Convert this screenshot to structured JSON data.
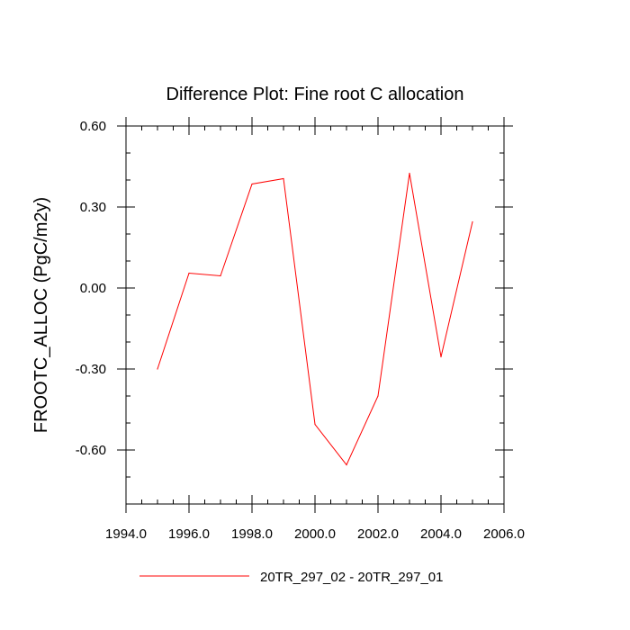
{
  "chart_data": {
    "type": "line",
    "title": "Difference Plot: Fine root C allocation",
    "xlabel": "",
    "ylabel": "FROOTC_ALLOC  (PgC/m2y)",
    "xlim": [
      1994.0,
      2006.0
    ],
    "ylim": [
      -0.8,
      0.6
    ],
    "x_ticks": [
      1994.0,
      1996.0,
      1998.0,
      2000.0,
      2002.0,
      2004.0,
      2006.0
    ],
    "x_tick_labels": [
      "1994.0",
      "1996.0",
      "1998.0",
      "2000.0",
      "2002.0",
      "2004.0",
      "2006.0"
    ],
    "y_ticks": [
      0.6,
      0.3,
      0.0,
      -0.3,
      -0.6
    ],
    "y_tick_labels": [
      "0.60",
      "0.30",
      "0.00",
      "-0.30",
      "-0.60"
    ],
    "x_minor_step": 0.5,
    "y_minor_step": 0.1,
    "grid": false,
    "legend_position": "bottom-center",
    "series": [
      {
        "name": "20TR_297_02 - 20TR_297_01",
        "color": "#ff0000",
        "x": [
          1995,
          1996,
          1997,
          1998,
          1999,
          2000,
          2001,
          2002,
          2003,
          2004,
          2005
        ],
        "y": [
          -0.3,
          0.055,
          0.045,
          0.385,
          0.405,
          -0.505,
          -0.655,
          -0.4,
          0.425,
          -0.255,
          0.245
        ]
      }
    ]
  }
}
